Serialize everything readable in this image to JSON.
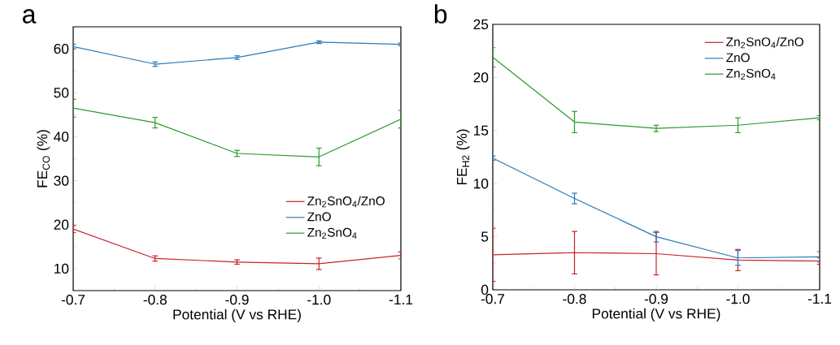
{
  "chart_data": [
    {
      "type": "line",
      "title": "a",
      "xlabel": "Potential (V vs RHE)",
      "ylabel": "FE$_{CO}$ (%)",
      "x": [
        -0.7,
        -0.8,
        -0.9,
        -1.0,
        -1.1
      ],
      "xlim": [
        -0.7,
        -1.1
      ],
      "xticks": [
        -0.7,
        -0.8,
        -0.9,
        {
          "value": -1,
          "label": "-1.0"
        },
        -1.1
      ],
      "ylim": [
        5,
        65
      ],
      "yticks": [
        10,
        20,
        30,
        40,
        50,
        60
      ],
      "legend": "bottom right",
      "series": [
        {
          "name": "Zn$_{2}$SnO$_{4}$/ZnO",
          "color": "#c8222a",
          "values": [
            19,
            12.3,
            11.5,
            11.1,
            13
          ],
          "errors": [
            0.8,
            0.6,
            0.5,
            1.3,
            0.8
          ]
        },
        {
          "name": "ZnO",
          "color": "#2a7ab8",
          "values": [
            60.5,
            56.5,
            58,
            61.5,
            61
          ],
          "errors": [
            0.5,
            0.5,
            0.4,
            0.3,
            0.3
          ]
        },
        {
          "name": "Zn$_{2}$SnO$_{4}$",
          "color": "#2a9a2a",
          "values": [
            46.5,
            43.2,
            36.2,
            35.4,
            44
          ],
          "errors": [
            2,
            1.2,
            0.7,
            2,
            2
          ]
        }
      ]
    },
    {
      "type": "line",
      "title": "b",
      "xlabel": "Potential (V vs RHE)",
      "ylabel": "FE$_{H2}$ (%)",
      "x": [
        -0.7,
        -0.8,
        -0.9,
        -1.0,
        -1.1
      ],
      "xlim": [
        -0.7,
        -1.1
      ],
      "xticks": [
        -0.7,
        -0.8,
        -0.9,
        {
          "value": -1,
          "label": "-1.0"
        },
        -1.1
      ],
      "ylim": [
        0,
        25
      ],
      "yticks": [
        0,
        5,
        10,
        15,
        20,
        25
      ],
      "legend": "top right",
      "series": [
        {
          "name": "Zn$_{2}$SnO$_{4}$/ZnO",
          "color": "#c8222a",
          "values": [
            3.3,
            3.5,
            3.4,
            2.8,
            2.7
          ],
          "errors": [
            2.5,
            2,
            2,
            1,
            0.3
          ]
        },
        {
          "name": "ZnO",
          "color": "#2a7ab8",
          "values": [
            12.4,
            8.6,
            5.0,
            3.0,
            3.1
          ],
          "errors": [
            0.2,
            0.5,
            0.5,
            0.7,
            0.5
          ]
        },
        {
          "name": "Zn$_{2}$SnO$_{4}$",
          "color": "#2a9a2a",
          "values": [
            21.9,
            15.8,
            15.2,
            15.5,
            16.2
          ],
          "errors": [
            0.9,
            1,
            0.3,
            0.7,
            0.2
          ]
        }
      ]
    }
  ]
}
